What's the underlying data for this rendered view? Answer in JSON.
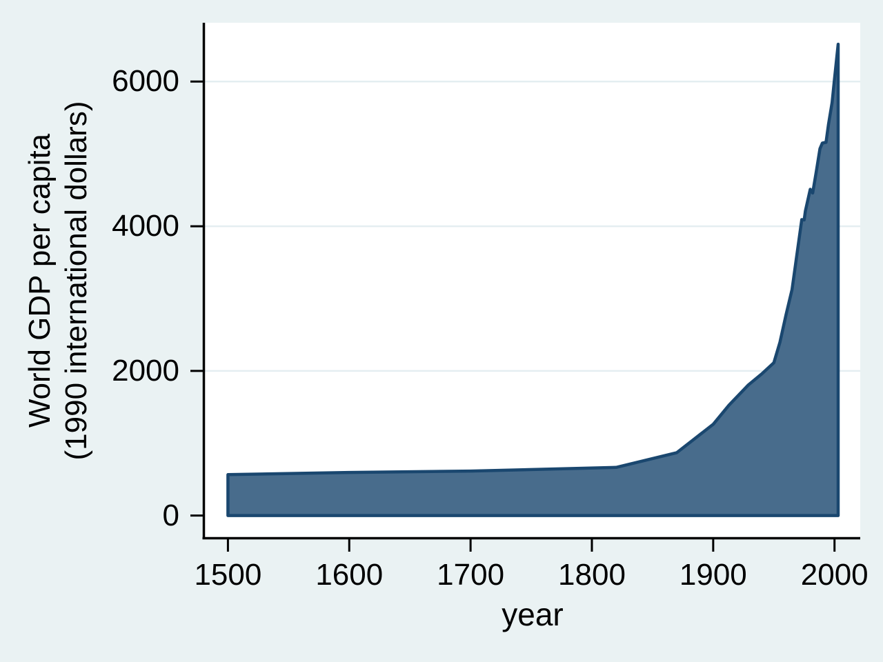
{
  "figure": {
    "background_color": "#EAF2F3",
    "plot_background_color": "#FFFFFF",
    "grid_color": "#E4EEF1",
    "axis_color": "#000000",
    "text_color": "#000000"
  },
  "chart_data": {
    "type": "area",
    "title": "",
    "xlabel": "year",
    "ylabel_lines": [
      "World GDP per capita",
      "(1990 international dollars)"
    ],
    "fill_color": "#486C8C",
    "line_color": "#1A476F",
    "x": [
      1500,
      1600,
      1700,
      1820,
      1870,
      1900,
      1913,
      1929,
      1940,
      1950,
      1955,
      1960,
      1965,
      1970,
      1973,
      1975,
      1976,
      1980,
      1982,
      1985,
      1988,
      1990,
      1993,
      1995,
      1998,
      2000,
      2003
    ],
    "y": [
      566,
      596,
      615,
      666,
      870,
      1262,
      1526,
      1806,
      1958,
      2113,
      2395,
      2773,
      3126,
      3729,
      4091,
      4088,
      4212,
      4511,
      4459,
      4758,
      5072,
      5150,
      5160,
      5404,
      5709,
      6038,
      6516
    ],
    "baseline": 0,
    "xticks": [
      1500,
      1600,
      1700,
      1800,
      1900,
      2000
    ],
    "yticks": [
      0,
      2000,
      4000,
      6000
    ],
    "xlim": [
      1481,
      2021.2
    ],
    "ylim": [
      -318,
      6813
    ],
    "grid": "horizontal",
    "legend": "none"
  }
}
